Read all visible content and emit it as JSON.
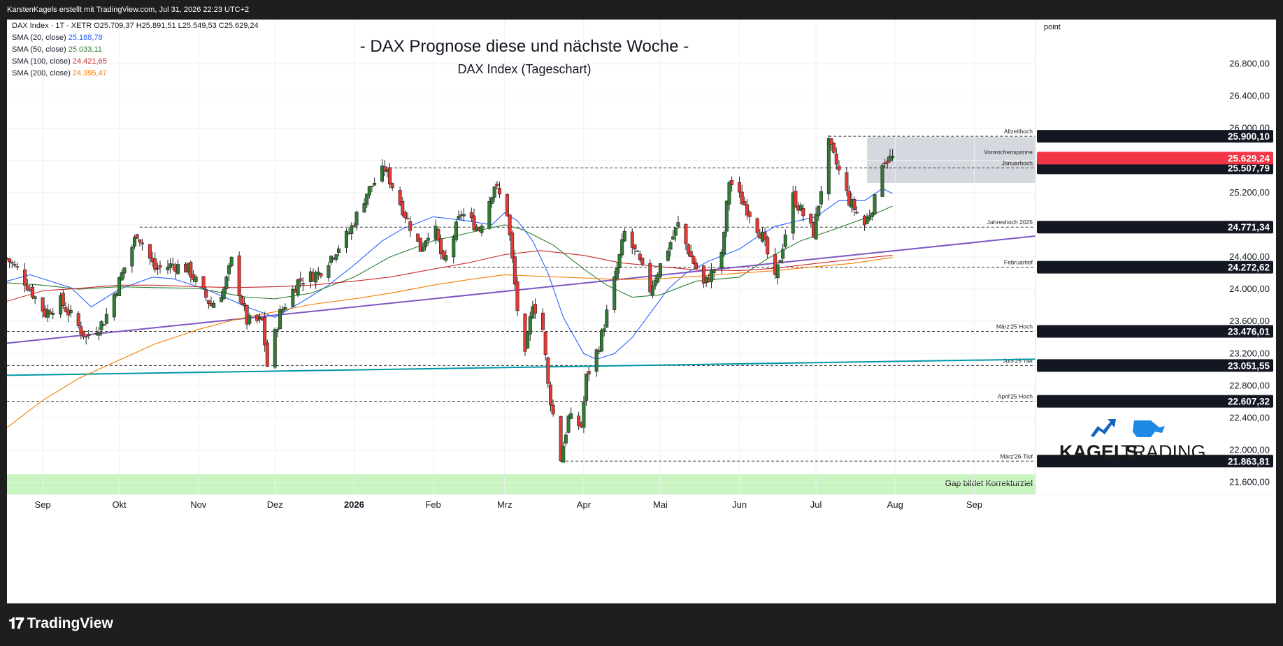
{
  "header": {
    "text": "KarstenKagels erstellt mit TradingView.com, Jul 31, 2026 22:23 UTC+2"
  },
  "branding": {
    "tradingview": "TradingView",
    "kagels_bold": "KAGELS",
    "kagels_light": "TRADING"
  },
  "chart_data": {
    "type": "candlestick",
    "title": "- DAX Prognose diese und nächste Woche -",
    "subtitle": "DAX Index (Tageschart)",
    "symbol_line": "DAX Index · 1T · XETR",
    "ohlc": {
      "O": "O25.709,37",
      "H": "H25.891,51",
      "L": "L25.549,53",
      "C": "C25.629,24"
    },
    "indicators": [
      {
        "name": "SMA (20, close)",
        "value": "25.188,78",
        "color": "#2962ff"
      },
      {
        "name": "SMA (50, close)",
        "value": "25.033,11",
        "color": "#2e7d32"
      },
      {
        "name": "SMA (100, close)",
        "value": "24.421,65",
        "color": "#c62828"
      },
      {
        "name": "SMA (200, close)",
        "value": "24.395,47",
        "color": "#f57c00"
      }
    ],
    "ylabel": "point",
    "ylim": [
      21450,
      27350
    ],
    "y_ticks": [
      21600,
      22000,
      22400,
      22800,
      23200,
      23600,
      24000,
      24400,
      24800,
      25200,
      25600,
      26000,
      26400,
      26800
    ],
    "y_tick_labels": [
      "21.600,00",
      "22.000,00",
      "22.400,00",
      "22.800,00",
      "23.200,00",
      "23.600,00",
      "24.000,00",
      "24.400,00",
      "24.800,00",
      "25.200,00",
      "25.600,00",
      "26.000,00",
      "26.400,00",
      "26.800,00"
    ],
    "x_labels": [
      {
        "label": "Sep",
        "date": "2025-09-01",
        "bold": false
      },
      {
        "label": "Okt",
        "date": "2025-10-01",
        "bold": false
      },
      {
        "label": "Nov",
        "date": "2025-11-01",
        "bold": false
      },
      {
        "label": "Dez",
        "date": "2025-12-01",
        "bold": false
      },
      {
        "label": "2026",
        "date": "2026-01-01",
        "bold": true
      },
      {
        "label": "Feb",
        "date": "2026-02-01",
        "bold": false
      },
      {
        "label": "Mrz",
        "date": "2026-03-01",
        "bold": false
      },
      {
        "label": "Apr",
        "date": "2026-04-01",
        "bold": false
      },
      {
        "label": "Mai",
        "date": "2026-05-01",
        "bold": false
      },
      {
        "label": "Jun",
        "date": "2026-06-01",
        "bold": false
      },
      {
        "label": "Jul",
        "date": "2026-07-01",
        "bold": false
      },
      {
        "label": "Aug",
        "date": "2026-08-01",
        "bold": false
      },
      {
        "label": "Sep",
        "date": "2026-09-01",
        "bold": false
      }
    ],
    "x_range": [
      "2025-08-18",
      "2026-09-25"
    ],
    "levels": [
      {
        "name": "Allzeithoch",
        "price": 25900.1,
        "label": "25.900,10",
        "from": "2026-07-06"
      },
      {
        "name": "Januarhoch",
        "price": 25507.79,
        "label": "25.507,79",
        "from": "2026-01-13"
      },
      {
        "name": "Jahreshoch 2025",
        "price": 24771.34,
        "label": "24.771,34",
        "from": "2025-10-09"
      },
      {
        "name": "Februartief",
        "price": 24272.62,
        "label": "24.272,62",
        "from": "2026-02-05"
      },
      {
        "name": "März'25 Hoch",
        "price": 23476.01,
        "label": "23.476,01",
        "from": "2025-08-18"
      },
      {
        "name": "Juni'25 Tief",
        "price": 23051.55,
        "label": "23.051,55",
        "from": "2025-08-18"
      },
      {
        "name": "April'25 Hoch",
        "price": 22607.32,
        "label": "22.607,32",
        "from": "2025-08-18"
      },
      {
        "name": "März'26-Tief",
        "price": 21863.81,
        "label": "21.863,81",
        "from": "2026-03-23"
      }
    ],
    "current_price": {
      "price": 25629.24,
      "label": "25.629,24",
      "color": "#f23645"
    },
    "box": {
      "label": "Vorwochenspanne",
      "from": "2026-07-21",
      "to": "2026-09-25",
      "high": 25890,
      "low": 25320
    },
    "gap_zone": {
      "label": "Gap bildet Korrekturziel",
      "high": 21700,
      "low": 21450,
      "color": "#c8f5c0"
    },
    "trendlines": [
      {
        "name": "purple",
        "color": "#7e57c2",
        "p1": [
          "2025-08-18",
          23330
        ],
        "p2": [
          "2026-09-25",
          24660
        ]
      },
      {
        "name": "teal",
        "color": "#0097a7",
        "p1": [
          "2025-08-18",
          22930
        ],
        "p2": [
          "2026-09-25",
          23130
        ]
      }
    ],
    "sma_lines": [
      {
        "name": "SMA20",
        "color": "#2962ff",
        "points": [
          [
            "2025-08-18",
            24100
          ],
          [
            "2025-08-27",
            24180
          ],
          [
            "2025-09-12",
            24020
          ],
          [
            "2025-09-20",
            23780
          ],
          [
            "2025-10-01",
            24000
          ],
          [
            "2025-10-14",
            24150
          ],
          [
            "2025-10-22",
            24130
          ],
          [
            "2025-11-04",
            24000
          ],
          [
            "2025-11-20",
            23780
          ],
          [
            "2025-12-01",
            23650
          ],
          [
            "2025-12-12",
            23850
          ],
          [
            "2025-12-22",
            24050
          ],
          [
            "2026-01-01",
            24300
          ],
          [
            "2026-01-12",
            24600
          ],
          [
            "2026-01-20",
            24750
          ],
          [
            "2026-02-01",
            24900
          ],
          [
            "2026-02-14",
            24850
          ],
          [
            "2026-02-24",
            24800
          ],
          [
            "2026-03-01",
            24950
          ],
          [
            "2026-03-06",
            24850
          ],
          [
            "2026-03-12",
            24600
          ],
          [
            "2026-03-18",
            24200
          ],
          [
            "2026-03-24",
            23650
          ],
          [
            "2026-04-01",
            23200
          ],
          [
            "2026-04-06",
            23130
          ],
          [
            "2026-04-13",
            23200
          ],
          [
            "2026-04-20",
            23400
          ],
          [
            "2026-04-27",
            23700
          ],
          [
            "2026-05-04",
            24000
          ],
          [
            "2026-05-11",
            24200
          ],
          [
            "2026-05-20",
            24350
          ],
          [
            "2026-06-01",
            24500
          ],
          [
            "2026-06-08",
            24650
          ],
          [
            "2026-06-15",
            24780
          ],
          [
            "2026-06-24",
            24850
          ],
          [
            "2026-07-01",
            24900
          ],
          [
            "2026-07-10",
            25100
          ],
          [
            "2026-07-20",
            25100
          ],
          [
            "2026-07-27",
            25250
          ],
          [
            "2026-07-31",
            25189
          ]
        ]
      },
      {
        "name": "SMA50",
        "color": "#2e7d32",
        "points": [
          [
            "2025-08-18",
            24080
          ],
          [
            "2025-09-01",
            24050
          ],
          [
            "2025-09-15",
            24000
          ],
          [
            "2025-10-01",
            24030
          ],
          [
            "2025-10-15",
            24020
          ],
          [
            "2025-11-01",
            24010
          ],
          [
            "2025-11-20",
            23900
          ],
          [
            "2025-12-01",
            23880
          ],
          [
            "2025-12-15",
            23950
          ],
          [
            "2026-01-01",
            24150
          ],
          [
            "2026-01-15",
            24400
          ],
          [
            "2026-02-01",
            24600
          ],
          [
            "2026-02-15",
            24700
          ],
          [
            "2026-03-01",
            24800
          ],
          [
            "2026-03-08",
            24740
          ],
          [
            "2026-03-20",
            24550
          ],
          [
            "2026-04-01",
            24250
          ],
          [
            "2026-04-10",
            24050
          ],
          [
            "2026-04-20",
            23900
          ],
          [
            "2026-05-01",
            23930
          ],
          [
            "2026-05-15",
            24100
          ],
          [
            "2026-06-01",
            24150
          ],
          [
            "2026-06-12",
            24380
          ],
          [
            "2026-06-25",
            24600
          ],
          [
            "2026-07-06",
            24720
          ],
          [
            "2026-07-20",
            24880
          ],
          [
            "2026-07-31",
            25033
          ]
        ]
      },
      {
        "name": "SMA100",
        "color": "#c62828",
        "points": [
          [
            "2025-08-18",
            23850
          ],
          [
            "2025-09-01",
            23980
          ],
          [
            "2025-09-15",
            24010
          ],
          [
            "2025-10-01",
            24050
          ],
          [
            "2025-10-15",
            24050
          ],
          [
            "2025-11-01",
            24030
          ],
          [
            "2025-11-15",
            24020
          ],
          [
            "2025-12-01",
            24030
          ],
          [
            "2025-12-15",
            24050
          ],
          [
            "2026-01-01",
            24100
          ],
          [
            "2026-01-15",
            24150
          ],
          [
            "2026-02-01",
            24250
          ],
          [
            "2026-02-15",
            24330
          ],
          [
            "2026-03-01",
            24430
          ],
          [
            "2026-03-15",
            24480
          ],
          [
            "2026-04-01",
            24420
          ],
          [
            "2026-04-15",
            24330
          ],
          [
            "2026-05-01",
            24280
          ],
          [
            "2026-05-15",
            24240
          ],
          [
            "2026-06-01",
            24230
          ],
          [
            "2026-06-15",
            24260
          ],
          [
            "2026-07-01",
            24320
          ],
          [
            "2026-07-15",
            24370
          ],
          [
            "2026-07-31",
            24422
          ]
        ]
      },
      {
        "name": "SMA200",
        "color": "#f57c00",
        "points": [
          [
            "2025-08-18",
            22280
          ],
          [
            "2025-09-01",
            22620
          ],
          [
            "2025-09-15",
            22890
          ],
          [
            "2025-10-01",
            23120
          ],
          [
            "2025-10-15",
            23320
          ],
          [
            "2025-11-01",
            23500
          ],
          [
            "2025-11-15",
            23620
          ],
          [
            "2025-12-01",
            23720
          ],
          [
            "2025-12-15",
            23810
          ],
          [
            "2026-01-01",
            23880
          ],
          [
            "2026-01-15",
            23950
          ],
          [
            "2026-02-01",
            24050
          ],
          [
            "2026-02-15",
            24120
          ],
          [
            "2026-03-01",
            24180
          ],
          [
            "2026-03-15",
            24160
          ],
          [
            "2026-04-01",
            24140
          ],
          [
            "2026-04-15",
            24120
          ],
          [
            "2026-05-01",
            24130
          ],
          [
            "2026-05-15",
            24160
          ],
          [
            "2026-06-01",
            24200
          ],
          [
            "2026-06-15",
            24230
          ],
          [
            "2026-07-01",
            24280
          ],
          [
            "2026-07-15",
            24320
          ],
          [
            "2026-07-31",
            24395
          ]
        ]
      }
    ],
    "pivots": [
      [
        "2025-08-18",
        24380
      ],
      [
        "2025-08-22",
        24250
      ],
      [
        "2025-09-02",
        23700
      ],
      [
        "2025-09-08",
        23850
      ],
      [
        "2025-09-18",
        23400
      ],
      [
        "2025-09-25",
        23600
      ],
      [
        "2025-10-01",
        24100
      ],
      [
        "2025-10-08",
        24700
      ],
      [
        "2025-10-15",
        24250
      ],
      [
        "2025-10-22",
        24300
      ],
      [
        "2025-10-28",
        24250
      ],
      [
        "2025-11-06",
        23800
      ],
      [
        "2025-11-11",
        24000
      ],
      [
        "2025-11-14",
        24350
      ],
      [
        "2025-11-20",
        23600
      ],
      [
        "2025-11-26",
        23600
      ],
      [
        "2025-11-28",
        23050
      ],
      [
        "2025-12-03",
        23700
      ],
      [
        "2025-12-10",
        24100
      ],
      [
        "2025-12-18",
        24200
      ],
      [
        "2025-12-30",
        24700
      ],
      [
        "2026-01-06",
        25200
      ],
      [
        "2026-01-13",
        25500
      ],
      [
        "2026-01-20",
        25000
      ],
      [
        "2026-01-27",
        24500
      ],
      [
        "2026-02-01",
        24850
      ],
      [
        "2026-02-05",
        24300
      ],
      [
        "2026-02-12",
        24950
      ],
      [
        "2026-02-19",
        24750
      ],
      [
        "2026-02-25",
        25300
      ],
      [
        "2026-03-02",
        24950
      ],
      [
        "2026-03-06",
        23750
      ],
      [
        "2026-03-09",
        23150
      ],
      [
        "2026-03-12",
        23850
      ],
      [
        "2026-03-16",
        23500
      ],
      [
        "2026-03-18",
        22800
      ],
      [
        "2026-03-23",
        21900
      ],
      [
        "2026-03-26",
        22400
      ],
      [
        "2026-03-31",
        22300
      ],
      [
        "2026-04-02",
        22900
      ],
      [
        "2026-04-07",
        23300
      ],
      [
        "2026-04-13",
        24100
      ],
      [
        "2026-04-17",
        24700
      ],
      [
        "2026-04-22",
        24400
      ],
      [
        "2026-04-27",
        24000
      ],
      [
        "2026-05-01",
        24300
      ],
      [
        "2026-05-08",
        24800
      ],
      [
        "2026-05-13",
        24400
      ],
      [
        "2026-05-18",
        24050
      ],
      [
        "2026-05-25",
        24400
      ],
      [
        "2026-05-28",
        25350
      ],
      [
        "2026-06-05",
        24950
      ],
      [
        "2026-06-10",
        24650
      ],
      [
        "2026-06-15",
        24100
      ],
      [
        "2026-06-22",
        25150
      ],
      [
        "2026-06-30",
        24700
      ],
      [
        "2026-07-06",
        25800
      ],
      [
        "2026-07-09",
        25550
      ],
      [
        "2026-07-14",
        25100
      ],
      [
        "2026-07-20",
        24800
      ],
      [
        "2026-07-24",
        25100
      ],
      [
        "2026-07-27",
        25600
      ],
      [
        "2026-07-31",
        25629
      ]
    ]
  }
}
